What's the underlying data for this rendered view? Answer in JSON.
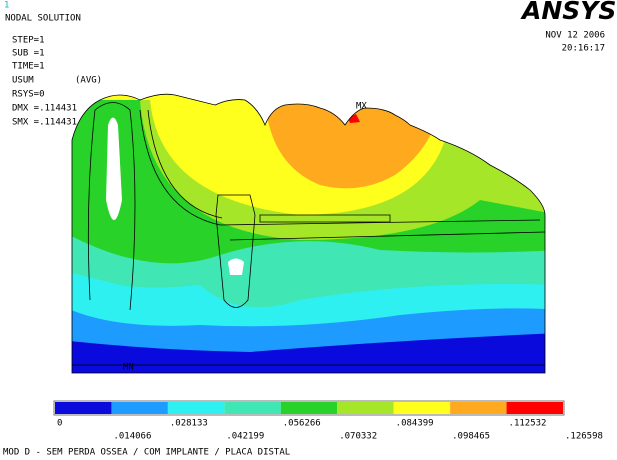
{
  "header": {
    "window_number": "1",
    "title": "NODAL SOLUTION",
    "step": "STEP=1",
    "sub": "SUB =1",
    "time": "TIME=1",
    "result": "USUM",
    "avg": "(AVG)",
    "rsys": "RSYS=0",
    "dmx": "DMX =.114431",
    "smx": "SMX =.114431",
    "logo": "ANSYS",
    "date": "NOV 12 2006",
    "clock": "20:16:17"
  },
  "plot": {
    "max_label": "MX",
    "min_label": "MN"
  },
  "legend": {
    "colors": [
      "#0a0adc",
      "#1e9bff",
      "#2ff0f0",
      "#40e6b4",
      "#28d228",
      "#a6e628",
      "#ffff1e",
      "#ffaa1e",
      "#ff0000"
    ],
    "labels": [
      "0",
      ".014066",
      ".028133",
      ".042199",
      ".056266",
      ".070332",
      ".084399",
      ".098465",
      ".112532",
      ".126598"
    ]
  },
  "footer": "MOD D - SEM PERDA OSSEA / COM IMPLANTE / PLACA DISTAL"
}
